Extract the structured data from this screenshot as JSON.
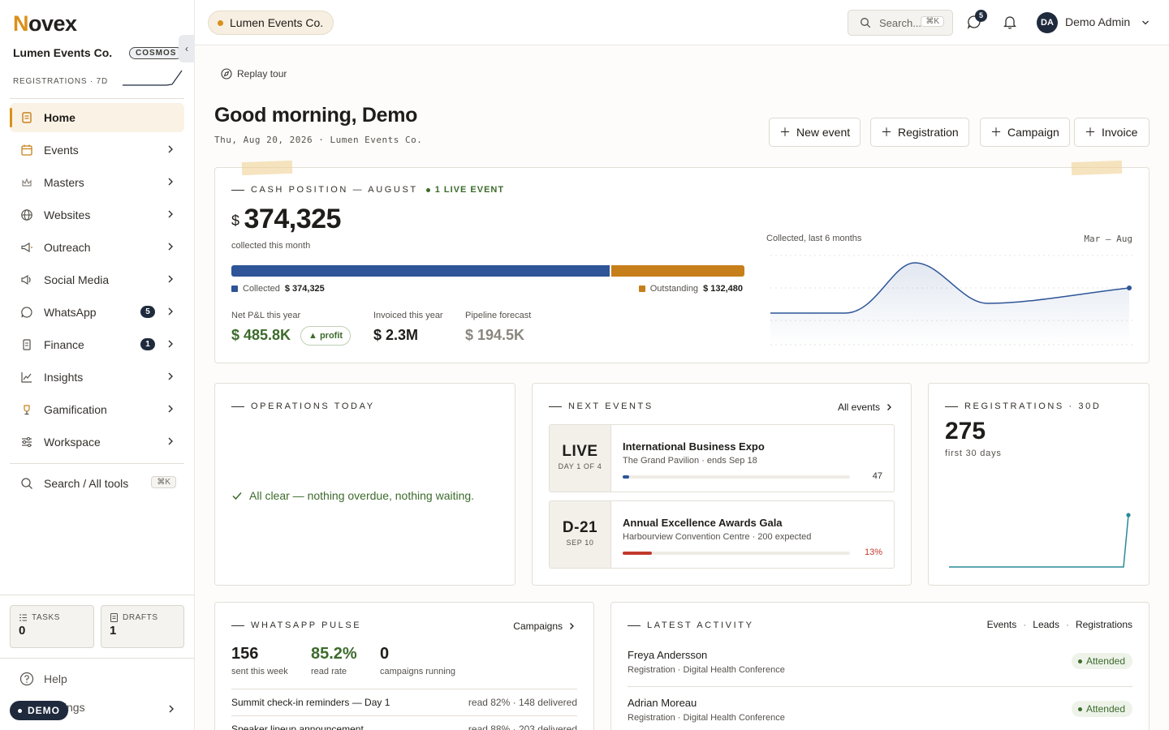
{
  "brand": {
    "logo_n": "N",
    "logo_rest": "ovex"
  },
  "sidebar": {
    "org_name": "Lumen Events Co.",
    "org_badge": "COSMOS",
    "collapse_glyph": "‹",
    "reg_label": "REGISTRATIONS · 7D",
    "nav": [
      {
        "label": "Home",
        "icon": "home-icon"
      },
      {
        "label": "Events",
        "icon": "calendar-icon"
      },
      {
        "label": "Masters",
        "icon": "crown-icon"
      },
      {
        "label": "Websites",
        "icon": "globe-icon"
      },
      {
        "label": "Outreach",
        "icon": "megaphone-icon"
      },
      {
        "label": "Social Media",
        "icon": "social-icon"
      },
      {
        "label": "WhatsApp",
        "icon": "whatsapp-icon",
        "count": "5"
      },
      {
        "label": "Finance",
        "icon": "receipt-icon",
        "count": "1"
      },
      {
        "label": "Insights",
        "icon": "chart-icon"
      },
      {
        "label": "Gamification",
        "icon": "trophy-icon"
      },
      {
        "label": "Workspace",
        "icon": "sliders-icon"
      }
    ],
    "search_tools": "Search / All tools",
    "search_kbd": "⌘K",
    "tasks_label": "TASKS",
    "tasks_value": "0",
    "drafts_label": "DRAFTS",
    "drafts_value": "1",
    "help": "Help",
    "settings": "Settings",
    "demo_label": "DEMO"
  },
  "topbar": {
    "org_pill": "Lumen Events Co.",
    "search_placeholder": "Search...",
    "search_kbd": "⌘K",
    "messages_badge": "5",
    "avatar_initials": "DA",
    "user_name": "Demo Admin"
  },
  "main": {
    "replay": "Replay tour",
    "greeting": "Good morning, Demo",
    "date_line": "Thu, Aug 20, 2026 · Lumen Events Co.",
    "quick_actions": [
      "New event",
      "Registration",
      "Campaign",
      "Invoice"
    ]
  },
  "cash": {
    "title": "CASH POSITION — AUGUST",
    "live": "1 LIVE EVENT",
    "currency": "$",
    "amount": "374,325",
    "sub": "collected this month",
    "collected_label": "Collected",
    "collected_value": "$ 374,325",
    "outstanding_label": "Outstanding",
    "outstanding_value": "$ 132,480",
    "collected_fraction": 0.739,
    "pnl_label": "Net P&L this year",
    "pnl_value": "$ 485.8K",
    "pnl_badge": "▲ profit",
    "invoiced_label": "Invoiced this year",
    "invoiced_value": "$ 2.3M",
    "pipeline_label": "Pipeline forecast",
    "pipeline_value": "$ 194.5K",
    "chart_label": "Collected, last 6 months",
    "chart_range": "Mar – Aug",
    "colors": {
      "collected": "#2d5597",
      "outstanding": "#c67f1a",
      "profit": "#3d6b2c"
    }
  },
  "ops": {
    "title": "OPERATIONS TODAY",
    "message": "All clear — nothing overdue, nothing waiting."
  },
  "next_events": {
    "title": "NEXT EVENTS",
    "link": "All events",
    "items": [
      {
        "badge": "LIVE",
        "badge_sub": "DAY 1 OF 4",
        "name": "International Business Expo",
        "sub": "The Grand Pavilion · ends Sep 18",
        "metric": "47",
        "progress": 0.03,
        "color": "#2d5597"
      },
      {
        "badge": "D-21",
        "badge_sub": "SEP 10",
        "name": "Annual Excellence Awards Gala",
        "sub": "Harbourview Convention Centre · 200 expected",
        "metric": "13%",
        "progress": 0.13,
        "color": "#c0392b"
      }
    ]
  },
  "registrations": {
    "title": "REGISTRATIONS · 30D",
    "value": "275",
    "sub": "first 30 days"
  },
  "whatsapp": {
    "title": "WHATSAPP PULSE",
    "link": "Campaigns",
    "stats": [
      {
        "value": "156",
        "label": "sent this week"
      },
      {
        "value": "85.2%",
        "label": "read rate"
      },
      {
        "value": "0",
        "label": "campaigns running"
      }
    ],
    "rows": [
      {
        "title": "Summit check-in reminders — Day 1",
        "meta": "read 82% · 148 delivered"
      },
      {
        "title": "Speaker lineup announcement",
        "meta": "read 88% · 203 delivered"
      }
    ]
  },
  "activity": {
    "title": "LATEST ACTIVITY",
    "links": [
      "Events",
      "Leads",
      "Registrations"
    ],
    "rows": [
      {
        "name": "Freya Andersson",
        "sub": "Registration · Digital Health Conference",
        "status": "Attended"
      },
      {
        "name": "Adrian Moreau",
        "sub": "Registration · Digital Health Conference",
        "status": "Attended"
      }
    ]
  }
}
